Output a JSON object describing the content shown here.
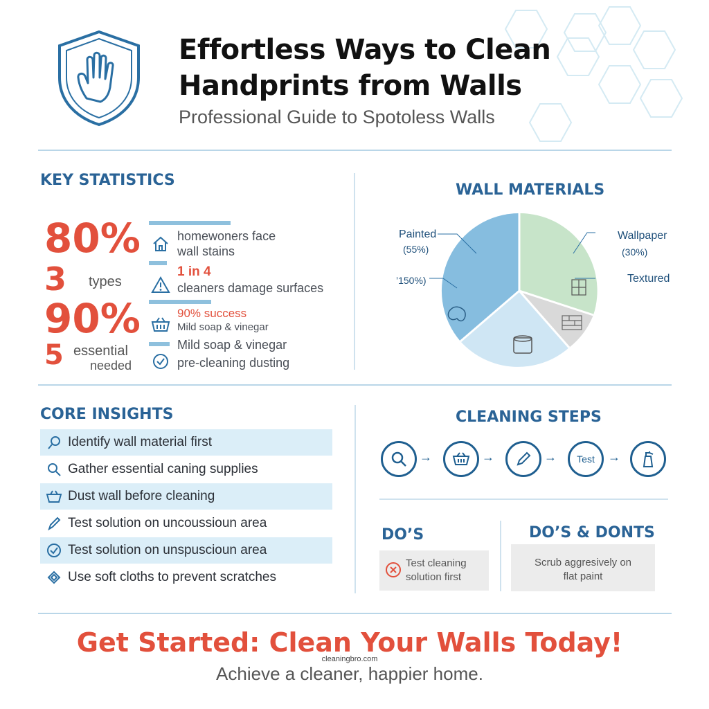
{
  "header": {
    "title_line1": "Effortless Ways to Clean",
    "title_line2": "Handprints from Walls",
    "subtitle": "Professional Guide to Spotoless Walls",
    "logo_icon": "hand-shield-icon"
  },
  "key_statistics": {
    "heading": "KEY STATISTICS",
    "stats": [
      {
        "value": "80%",
        "label": ""
      },
      {
        "value": "3",
        "label": "types"
      },
      {
        "value": "90%",
        "label": ""
      },
      {
        "value": "5",
        "label_line1": "essential",
        "label_line2": "needed"
      }
    ],
    "facts": [
      {
        "icon": "house-icon",
        "line1": "homewoners face",
        "line2": "wall stains"
      },
      {
        "icon": "warning-icon",
        "line1": "1 in 4",
        "line2": "cleaners damage surfaces"
      },
      {
        "icon": "basket-icon",
        "line1": "90% success",
        "line2": "Mild soap & vinegar"
      },
      {
        "icon": "check-circle-icon",
        "line1": "Mild soap & vinegar",
        "line2": "pre-cleaning dusting"
      }
    ]
  },
  "wall_materials": {
    "heading": "WALL MATERIALS",
    "labels": {
      "painted": "Painted",
      "painted_pct": "(55%)",
      "other_pct": "’150%)",
      "wallpaper": "Wallpaper",
      "wallpaper_pct": "(30%)",
      "textured": "Textured"
    },
    "colors": {
      "painted": "#86bddf",
      "wallpaper": "#c7e4c9",
      "brick": "#d9d9d9",
      "bottom": "#cfe6f4"
    }
  },
  "core_insights": {
    "heading": "CORE INSIGHTS",
    "items": [
      {
        "icon": "magnifier-icon",
        "text": "Identify wall material first"
      },
      {
        "icon": "search-icon",
        "text": "Gather essential caning supplies"
      },
      {
        "icon": "basket-icon",
        "text": "Dust wall before cleaning"
      },
      {
        "icon": "pen-icon",
        "text": "Test solution on uncoussioun area"
      },
      {
        "icon": "check-circle-icon",
        "text": "Test solution on unspuscioun area"
      },
      {
        "icon": "cloth-icon",
        "text": "Use soft cloths to prevent scratches"
      }
    ]
  },
  "cleaning_steps": {
    "heading": "CLEANING STEPS",
    "test_label": "Test",
    "steps": [
      "magnifier-icon",
      "basket-icon",
      "brush-icon",
      "test",
      "spray-bottle-icon"
    ]
  },
  "dos": {
    "heading": "DO’S",
    "card_line1": "Test cleaning",
    "card_line2": "solution first"
  },
  "dos_donts": {
    "heading": "DO’S & DONTS",
    "card_line1": "Scrub aggresively on",
    "card_line2": "flat paint"
  },
  "footer": {
    "cta": "Get Started: Clean Your Walls Today!",
    "watermark": "cleaningbro.com",
    "tagline": "Achieve a cleaner, happier home."
  }
}
